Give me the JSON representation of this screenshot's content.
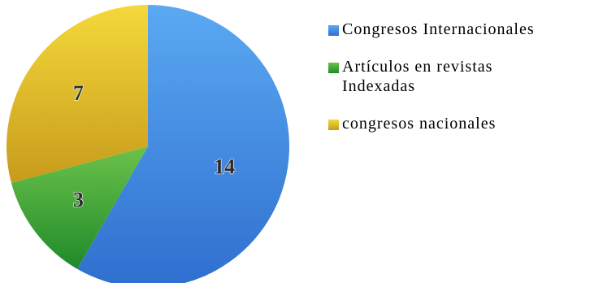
{
  "chart_data": {
    "type": "pie",
    "title": "",
    "categories": [
      "Congresos Internacionales",
      "Artículos en revistas Indexadas",
      "congresos nacionales"
    ],
    "values": [
      14,
      3,
      7
    ],
    "data_labels": [
      "14",
      "3",
      "7"
    ],
    "colors": [
      "#4a90e2",
      "#3fa33f",
      "#e8c22a"
    ],
    "gradient_light": [
      "#5aa9f2",
      "#6cc24a",
      "#f4d93a"
    ],
    "gradient_dark": [
      "#2f6fcf",
      "#1f8a2a",
      "#c79b1c"
    ],
    "start_angle_deg": 0,
    "direction": "clockwise",
    "legend_position": "right"
  }
}
